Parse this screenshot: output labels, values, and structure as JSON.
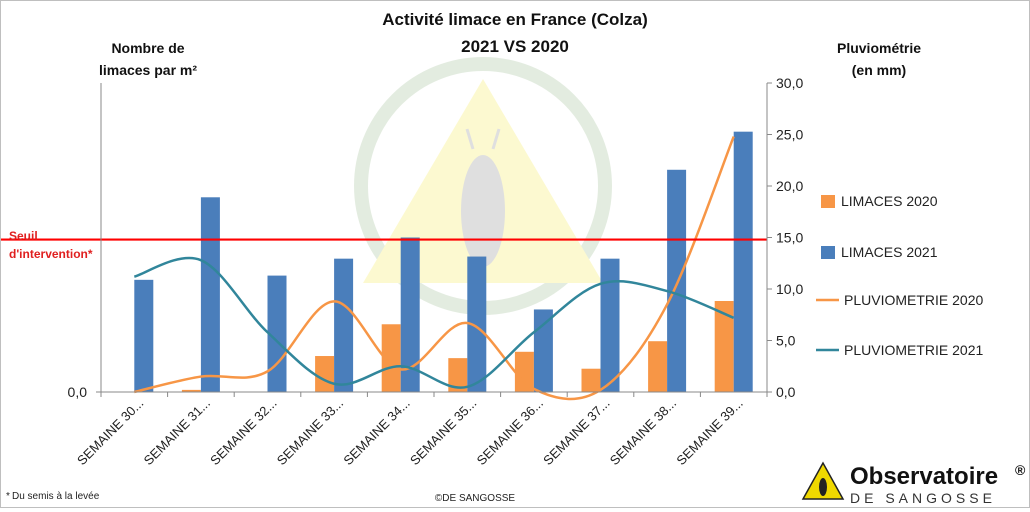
{
  "chart_data": {
    "type": "bar",
    "title": "Activité limace en France (Colza)",
    "subtitle": "2021 VS 2020",
    "ylabel_left": [
      "Nombre de",
      "limaces par m²"
    ],
    "ylabel_right": [
      "Pluviométrie",
      "(en mm)"
    ],
    "left_axis": {
      "min": 0,
      "tick_labels": [
        "0,0"
      ]
    },
    "right_axis": {
      "min": 0,
      "max": 30,
      "tick_labels": [
        "0,0",
        "5,0",
        "10,0",
        "15,0",
        "20,0",
        "25,0",
        "30,0"
      ]
    },
    "categories": [
      "SEMAINE 30...",
      "SEMAINE 31...",
      "SEMAINE 32...",
      "SEMAINE 33...",
      "SEMAINE 34...",
      "SEMAINE 35...",
      "SEMAINE 36...",
      "SEMAINE 37...",
      "SEMAINE 38...",
      "SEMAINE 39..."
    ],
    "series": [
      {
        "name": "LIMACES 2020",
        "kind": "bar",
        "axis": "left",
        "color": "#f79646",
        "values": [
          0,
          0.1,
          0,
          1.7,
          3.2,
          1.6,
          1.9,
          1.1,
          2.4,
          4.3
        ]
      },
      {
        "name": "LIMACES 2021",
        "kind": "bar",
        "axis": "left",
        "color": "#4a7ebb",
        "values": [
          5.3,
          9.2,
          5.5,
          6.3,
          7.3,
          6.4,
          3.9,
          6.3,
          10.5,
          12.3
        ]
      },
      {
        "name": "PLUVIOMETRIE 2020",
        "kind": "line",
        "axis": "right",
        "color": "#f79646",
        "values": [
          0,
          1.5,
          2,
          8.8,
          2.2,
          6.7,
          0.3,
          0.2,
          8.5,
          24.8
        ]
      },
      {
        "name": "PLUVIOMETRIE 2021",
        "kind": "line",
        "axis": "right",
        "color": "#31869b",
        "values": [
          11.2,
          12.8,
          5.8,
          0.8,
          2.5,
          0.5,
          5.8,
          10.5,
          9.8,
          7.2
        ]
      }
    ],
    "threshold": {
      "label": [
        "Seuil",
        "d'intervention*"
      ],
      "color": "#ff0000",
      "value_right_axis": 14.8
    },
    "legend_position": "right",
    "grid": false
  },
  "footer": {
    "note": "Du semis à la levée",
    "note_marker": "*",
    "copyright": "©DE SANGOSSE"
  },
  "brand": {
    "name": "Observatoire",
    "sup": "®",
    "subtitle": "DE SANGOSSE"
  }
}
